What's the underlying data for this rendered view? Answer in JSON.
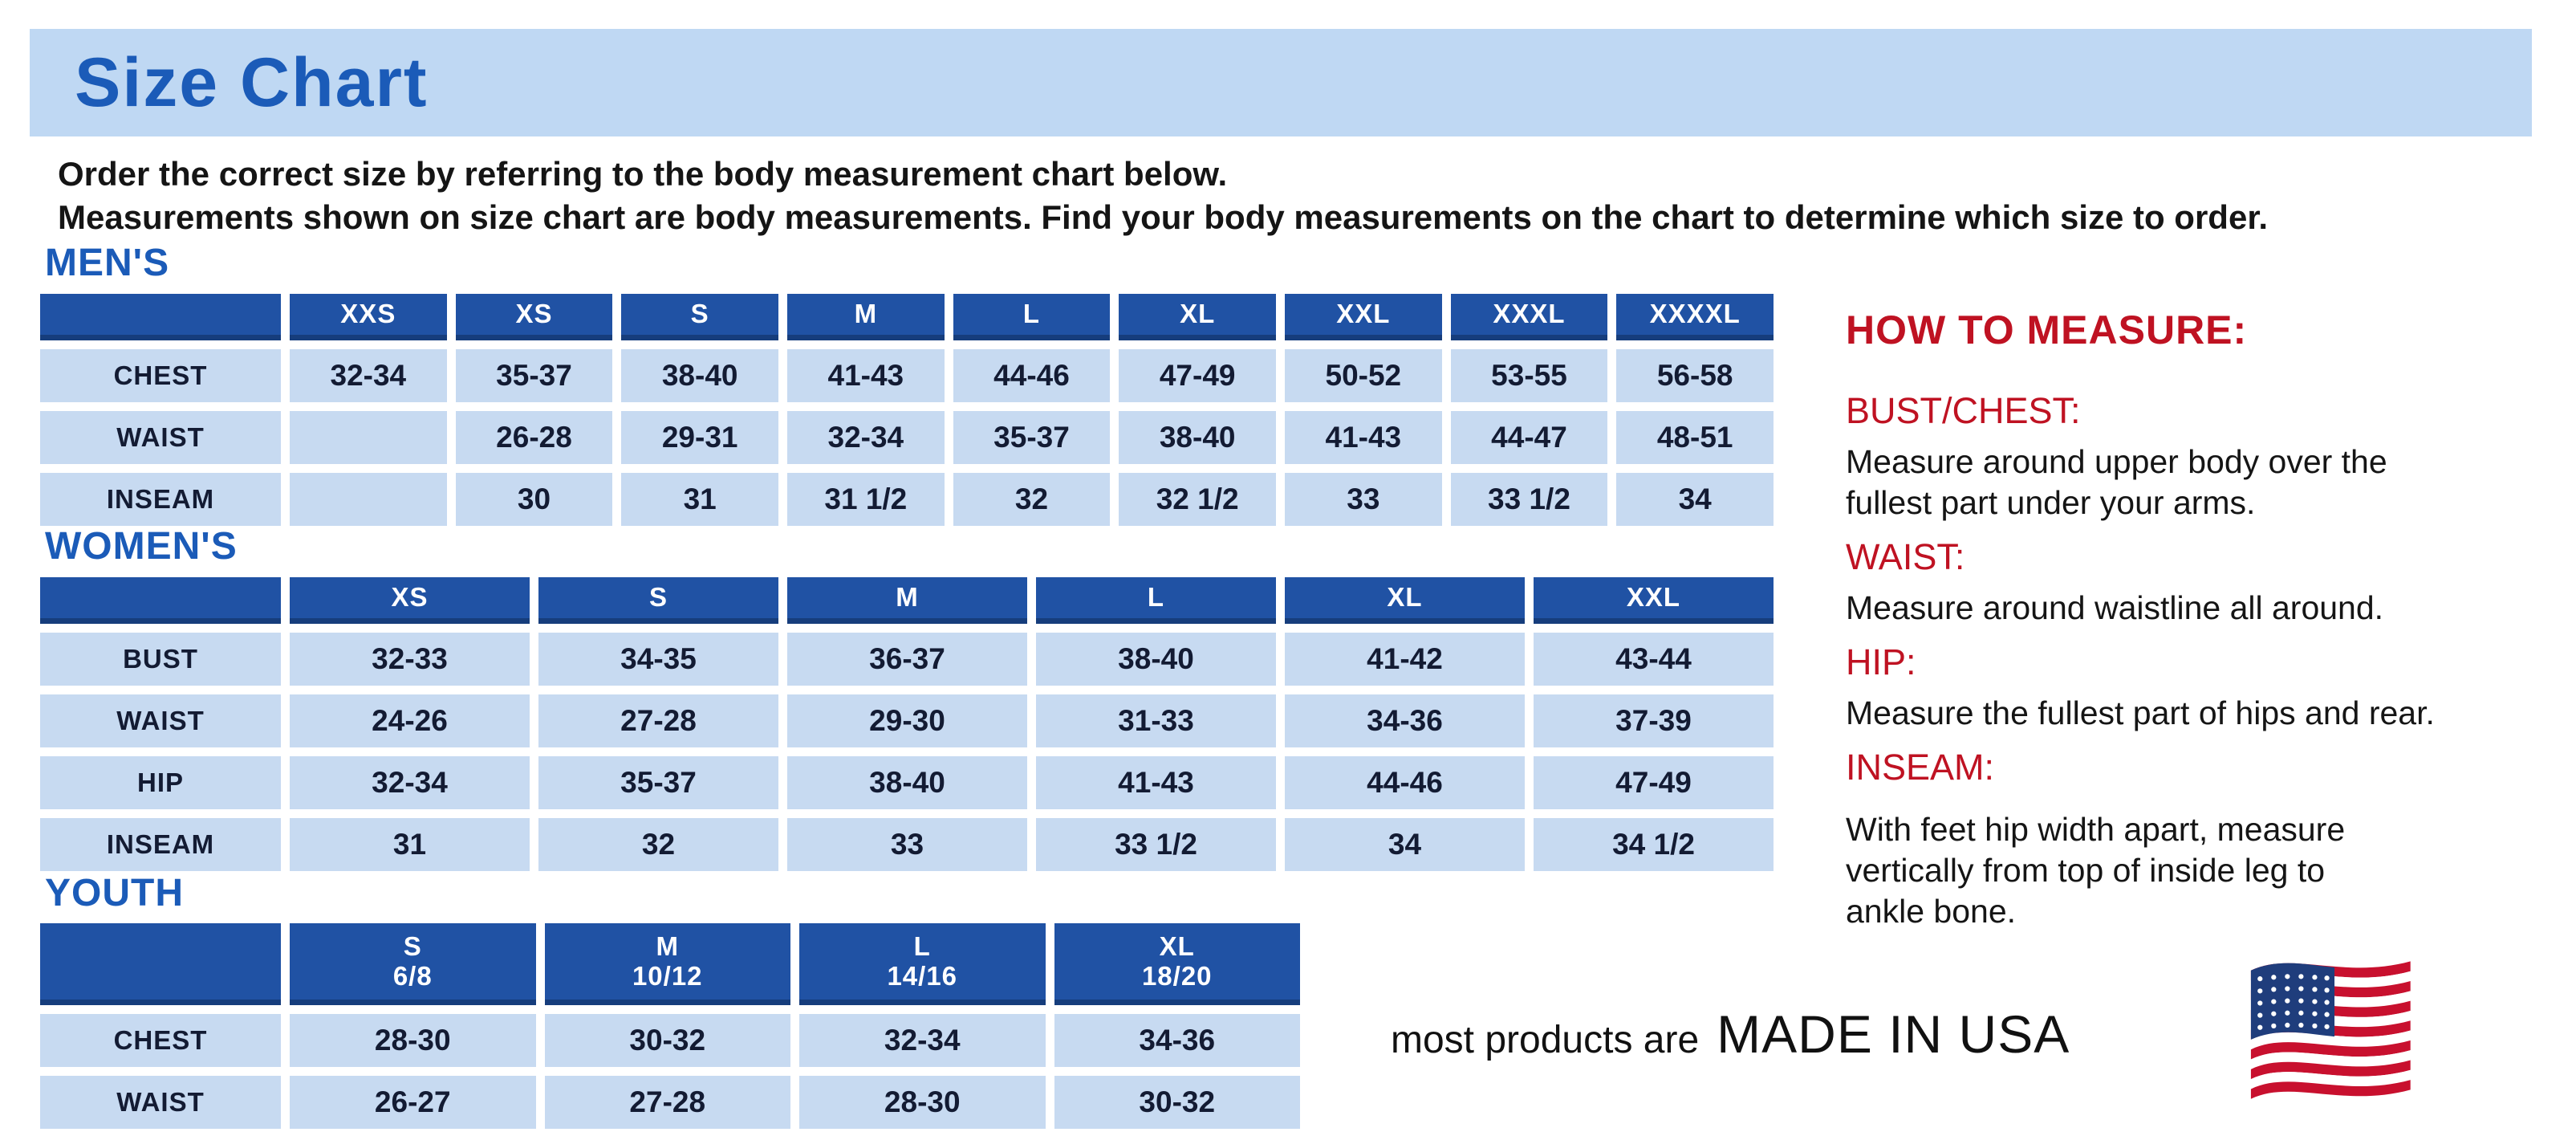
{
  "page": {
    "title": "Size Chart",
    "intro_line1": "Order the correct size by referring to the body measurement chart below.",
    "intro_line2": "Measurements shown on size chart are body measurements.  Find your body measurements on the chart to determine which size to order."
  },
  "tables": {
    "mens": {
      "heading": "MEN'S",
      "columns": [
        "",
        "XXS",
        "XS",
        "S",
        "M",
        "L",
        "XL",
        "XXL",
        "XXXL",
        "XXXXL"
      ],
      "rows": [
        {
          "label": "CHEST",
          "values": [
            "32-34",
            "35-37",
            "38-40",
            "41-43",
            "44-46",
            "47-49",
            "50-52",
            "53-55",
            "56-58"
          ]
        },
        {
          "label": "WAIST",
          "values": [
            "",
            "26-28",
            "29-31",
            "32-34",
            "35-37",
            "38-40",
            "41-43",
            "44-47",
            "48-51"
          ]
        },
        {
          "label": "INSEAM",
          "values": [
            "",
            "30",
            "31",
            "31 1/2",
            "32",
            "32 1/2",
            "33",
            "33 1/2",
            "34"
          ]
        }
      ]
    },
    "womens": {
      "heading": "WOMEN'S",
      "columns": [
        "",
        "XS",
        "S",
        "M",
        "L",
        "XL",
        "XXL"
      ],
      "rows": [
        {
          "label": "BUST",
          "values": [
            "32-33",
            "34-35",
            "36-37",
            "38-40",
            "41-42",
            "43-44"
          ]
        },
        {
          "label": "WAIST",
          "values": [
            "24-26",
            "27-28",
            "29-30",
            "31-33",
            "34-36",
            "37-39"
          ]
        },
        {
          "label": "HIP",
          "values": [
            "32-34",
            "35-37",
            "38-40",
            "41-43",
            "44-46",
            "47-49"
          ]
        },
        {
          "label": "INSEAM",
          "values": [
            "31",
            "32",
            "33",
            "33 1/2",
            "34",
            "34 1/2"
          ]
        }
      ]
    },
    "youth": {
      "heading": "YOUTH",
      "columns": [
        "",
        [
          "S",
          "6/8"
        ],
        [
          "M",
          "10/12"
        ],
        [
          "L",
          "14/16"
        ],
        [
          "XL",
          "18/20"
        ]
      ],
      "rows": [
        {
          "label": "CHEST",
          "values": [
            "28-30",
            "30-32",
            "32-34",
            "34-36"
          ]
        },
        {
          "label": "WAIST",
          "values": [
            "26-27",
            "27-28",
            "28-30",
            "30-32"
          ]
        }
      ]
    }
  },
  "how_to_measure": {
    "heading": "HOW TO MEASURE:",
    "items": [
      {
        "label": "BUST/CHEST:",
        "text": "Measure around upper body over the\nfullest part under your arms."
      },
      {
        "label": "WAIST:",
        "text": "Measure around waistline all around."
      },
      {
        "label": "HIP:",
        "text": "Measure the fullest part of hips and rear."
      },
      {
        "label": "INSEAM:",
        "text": "With feet hip width apart, measure\nvertically from top of inside leg to\nankle bone."
      }
    ]
  },
  "footer": {
    "prefix": "most products are",
    "made_in": "MADE IN USA",
    "flag_icon": "usa-flag-icon"
  },
  "colors": {
    "banner_blue": "#bfd8f3",
    "title_blue": "#1b5bb8",
    "heading_blue": "#1b5bb8",
    "table_header_blue": "#2052a4",
    "table_header_edge": "#163d7c",
    "cell_blue": "#c7daf1",
    "cell_text": "#131b33",
    "accent_red": "#bf1222",
    "body_text": "#151515"
  }
}
